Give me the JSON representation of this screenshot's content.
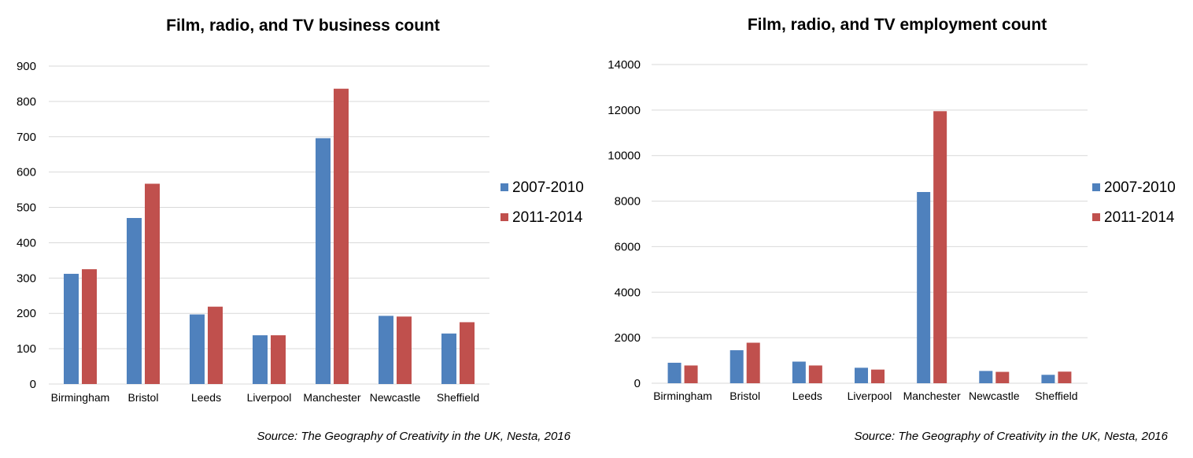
{
  "chart_data": [
    {
      "type": "bar",
      "title": "Film, radio, and TV business count",
      "categories": [
        "Birmingham",
        "Bristol",
        "Leeds",
        "Liverpool",
        "Manchester",
        "Newcastle",
        "Sheffield"
      ],
      "series": [
        {
          "name": "2007-2010",
          "color": "#4f81bd",
          "values": [
            312,
            470,
            197,
            138,
            696,
            193,
            143
          ]
        },
        {
          "name": "2011-2014",
          "color": "#c0504d",
          "values": [
            325,
            567,
            219,
            138,
            836,
            191,
            175
          ]
        }
      ],
      "ylim": [
        0,
        900
      ],
      "yticks": [
        0,
        100,
        200,
        300,
        400,
        500,
        600,
        700,
        800,
        900
      ],
      "grid": true,
      "legend_position": "right",
      "source": "Source: The Geography of Creativity in the UK, Nesta, 2016"
    },
    {
      "type": "bar",
      "title": "Film, radio, and TV employment count",
      "categories": [
        "Birmingham",
        "Bristol",
        "Leeds",
        "Liverpool",
        "Manchester",
        "Newcastle",
        "Sheffield"
      ],
      "series": [
        {
          "name": "2007-2010",
          "color": "#4f81bd",
          "values": [
            900,
            1450,
            950,
            680,
            8400,
            540,
            370
          ]
        },
        {
          "name": "2011-2014",
          "color": "#c0504d",
          "values": [
            780,
            1780,
            780,
            600,
            11950,
            500,
            510
          ]
        }
      ],
      "ylim": [
        0,
        14000
      ],
      "yticks": [
        0,
        2000,
        4000,
        6000,
        8000,
        10000,
        12000,
        14000
      ],
      "grid": true,
      "legend_position": "right",
      "source": "Source: The Geography of Creativity in the UK, Nesta, 2016"
    }
  ]
}
